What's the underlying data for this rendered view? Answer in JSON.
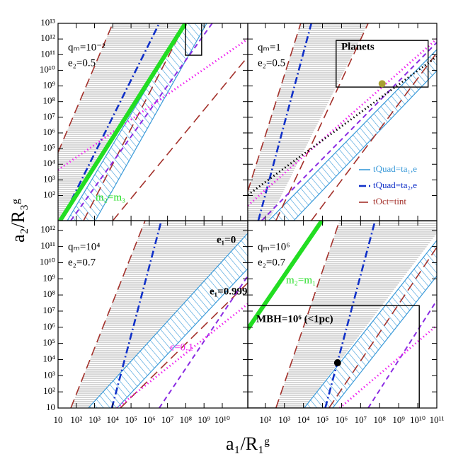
{
  "chart_data": [
    {
      "type": "line",
      "log_scale": true,
      "xlim": [
        10,
        250000000000.0
      ],
      "ylim": [
        2.5,
        10000000000000.0
      ],
      "xtick_labels": false,
      "ytick_labels": true,
      "ylabel": "a₂/R₃ᵍ",
      "xticks": [
        10,
        100,
        1000.0,
        10000.0,
        100000.0,
        1000000.0,
        10000000.0,
        100000000.0,
        1000000000.0,
        10000000000.0,
        100000000000.0
      ],
      "yticks": [
        {
          "value": 100,
          "label": "10²"
        },
        {
          "value": 1000.0,
          "label": "10³"
        },
        {
          "value": 10000.0,
          "label": "10⁴"
        },
        {
          "value": 100000.0,
          "label": "10⁵"
        },
        {
          "value": 1000000.0,
          "label": "10⁶"
        },
        {
          "value": 10000000.0,
          "label": "10⁷"
        },
        {
          "value": 100000000.0,
          "label": "10⁸"
        },
        {
          "value": 1000000000.0,
          "label": "10⁹"
        },
        {
          "value": 10000000000.0,
          "label": "10¹⁰"
        },
        {
          "value": 100000000000.0,
          "label": "10¹¹"
        },
        {
          "value": 1000000000000.0,
          "label": "10¹²"
        },
        {
          "value": 10000000000000.0,
          "label": "10¹³"
        }
      ],
      "labels": [
        "qₘ=10⁻²",
        "e₂=0.5"
      ],
      "bands": [
        {
          "hatch": "horizontal",
          "color": "#9a9a9a",
          "x": [
            10,
            10000.0,
            95000000.0,
            13,
            10
          ],
          "values": [
            58000.0,
            10000000000000.0,
            10000000000000.0,
            2.5,
            2.5
          ]
        },
        {
          "hatch": "diagonal",
          "color": "#3a9ad9",
          "x": [
            32,
            95000000.0,
            1400000000.0,
            1100.0
          ],
          "values": [
            2.5,
            10000000000000.0,
            10000000000000.0,
            2.5
          ]
        }
      ],
      "series": [
        {
          "color": "#a3302a",
          "style": "longdash",
          "x": [
            10,
            10000.0
          ],
          "values": [
            58000.0,
            10000000000000.0
          ]
        },
        {
          "color": "#a3302a",
          "style": "longdash",
          "x": [
            250,
            95000000.0
          ],
          "values": [
            2.5,
            10000000000000.0
          ]
        },
        {
          "color": "#a3302a",
          "style": "longdash",
          "x": [
            10000.0,
            250000000000.0
          ],
          "values": [
            2.5,
            74000000000.0
          ]
        },
        {
          "color": "#1030c8",
          "style": "dashdot",
          "x": [
            25,
            3500000.0
          ],
          "values": [
            8.3,
            10000000000000.0
          ]
        },
        {
          "color": "#8a2be2",
          "style": "dash",
          "x": [
            50,
            2800000000.0
          ],
          "values": [
            2.5,
            10000000000000.0
          ]
        },
        {
          "color": "#ee22ee",
          "style": "dot",
          "x": [
            10,
            250000000000.0
          ],
          "values": [
            4300.0,
            1000000000000.0
          ]
        },
        {
          "color": "#22dd22",
          "style": "thick",
          "x": [
            13,
            95000000.0
          ],
          "values": [
            2.5,
            10000000000000.0
          ]
        }
      ],
      "boxes": [
        {
          "x": [
            95000000.0,
            740000000.0
          ],
          "values": [
            92000000000.0,
            10000000000000.0
          ]
        }
      ],
      "annotations": [
        {
          "text": "m₂=m₃",
          "color": "#22dd22"
        }
      ]
    },
    {
      "type": "line",
      "log_scale": true,
      "xlim": [
        12,
        100000000000.0
      ],
      "ylim": [
        2.5,
        10000000000000.0
      ],
      "xtick_labels": false,
      "ytick_labels": false,
      "xticks": [
        100,
        1000.0,
        10000.0,
        100000.0,
        1000000.0,
        10000000.0,
        100000000.0,
        1000000000.0,
        10000000000.0,
        100000000000.0
      ],
      "yticks": [
        100,
        1000.0,
        10000.0,
        100000.0,
        1000000.0,
        10000000.0,
        100000000.0,
        1000000000.0,
        10000000000.0,
        100000000000.0,
        1000000000000.0,
        10000000000000.0
      ],
      "labels": [
        "qₘ=1",
        "e₂=0.5"
      ],
      "bands": [
        {
          "hatch": "horizontal",
          "color": "#9a9a9a",
          "x": [
            12,
            7200.0,
            25000000.0,
            150,
            12
          ],
          "values": [
            190,
            10000000000000.0,
            10000000000000.0,
            2.5,
            2.5
          ]
        },
        {
          "hatch": "diagonal",
          "color": "#3a9ad9",
          "x": [
            150,
            100000000000.0,
            100000000000.0,
            3100.0
          ],
          "values": [
            2.5,
            210000000000.0,
            9300000000.0,
            2.5
          ]
        }
      ],
      "series": [
        {
          "color": "#a3302a",
          "style": "longdash",
          "x": [
            12,
            7200.0
          ],
          "values": [
            190,
            10000000000000.0
          ]
        },
        {
          "color": "#a3302a",
          "style": "longdash",
          "x": [
            360,
            25000000.0
          ],
          "values": [
            2.5,
            10000000000000.0
          ]
        },
        {
          "color": "#a3302a",
          "style": "longdash",
          "x": [
            26000.0,
            100000000000.0
          ],
          "values": [
            2.5,
            130000000000.0
          ]
        },
        {
          "color": "#1030c8",
          "style": "dashdot",
          "x": [
            43,
            26000.0
          ],
          "values": [
            2.5,
            10000000000000.0
          ]
        },
        {
          "color": "#8a2be2",
          "style": "dash",
          "x": [
            65,
            100000000000.0
          ],
          "values": [
            2.5,
            600000000000.0
          ]
        },
        {
          "color": "#ee22ee",
          "style": "dot",
          "x": [
            12,
            100000000000.0
          ],
          "values": [
            23,
            1000000000000.0
          ]
        },
        {
          "color": "#000000",
          "style": "dot",
          "x": [
            12,
            100000000000.0
          ],
          "values": [
            110,
            74000000000.0
          ]
        }
      ],
      "boxes": [
        {
          "x": [
            520000.0,
            35000000000.0
          ],
          "values": [
            850000000.0,
            810000000000.0
          ]
        }
      ],
      "points": [
        {
          "color": "#a8a032",
          "x": 135000000.0,
          "values": 1400000000.0
        }
      ],
      "annotations": [
        {
          "text": "Planets",
          "color": "#000000"
        }
      ],
      "legend_corner": "lower right",
      "legend": [
        {
          "text": "tQuad=ta₁,e",
          "color": "#3a9ad9",
          "style": "solid"
        },
        {
          "text": "tQuad=ta₂,e",
          "color": "#1030c8",
          "style": "dashdot"
        },
        {
          "text": "tOct=tint",
          "color": "#a3302a",
          "style": "longdash"
        }
      ]
    },
    {
      "type": "line",
      "log_scale": true,
      "xlim": [
        10,
        250000000000.0
      ],
      "ylim": [
        10,
        4000000000000.0
      ],
      "xtick_labels": true,
      "ytick_labels": true,
      "xlabel": "a₁/R₁ᵍ",
      "xticks": [
        10,
        {
          "value": 100,
          "label": "10²"
        },
        {
          "value": 1000.0,
          "label": "10³"
        },
        {
          "value": 10000.0,
          "label": "10⁴"
        },
        {
          "value": 100000.0,
          "label": "10⁵"
        },
        {
          "value": 1000000.0,
          "label": "10⁶"
        },
        {
          "value": 10000000.0,
          "label": "10⁷"
        },
        {
          "value": 100000000.0,
          "label": "10⁸"
        },
        {
          "value": 1000000000.0,
          "label": "10⁹"
        },
        {
          "value": 10000000000.0,
          "label": "10¹⁰"
        }
      ],
      "yticks": [
        10,
        {
          "value": 100,
          "label": "10²"
        },
        {
          "value": 1000.0,
          "label": "10³"
        },
        {
          "value": 10000.0,
          "label": "10⁴"
        },
        {
          "value": 100000.0,
          "label": "10⁵"
        },
        {
          "value": 1000000.0,
          "label": "10⁶"
        },
        {
          "value": 10000000.0,
          "label": "10⁷"
        },
        {
          "value": 100000000.0,
          "label": "10⁸"
        },
        {
          "value": 1000000000.0,
          "label": "10⁹"
        },
        {
          "value": 10000000000.0,
          "label": "10¹⁰"
        },
        {
          "value": 100000000000.0,
          "label": "10¹¹"
        },
        {
          "value": 1000000000000.0,
          "label": "10¹²"
        }
      ],
      "labels": [
        "qₘ=10⁴",
        "e₂=0.7"
      ],
      "bands": [
        {
          "hatch": "horizontal",
          "color": "#9a9a9a",
          "x": [
            50,
            590000.0,
            250000000000.0,
            250000000000.0,
            720
          ],
          "values": [
            10,
            4000000000000.0,
            4000000000000.0,
            660000000000.0,
            10
          ]
        },
        {
          "hatch": "diagonal",
          "color": "#3a9ad9",
          "x": [
            460,
            250000000000.0,
            250000000000.0,
            17000.0
          ],
          "values": [
            10,
            660000000000.0,
            4300000000.0,
            10
          ]
        }
      ],
      "series": [
        {
          "color": "#a3302a",
          "style": "longdash",
          "x": [
            50,
            590000.0
          ],
          "values": [
            10,
            4000000000000.0
          ]
        },
        {
          "color": "#a3302a",
          "style": "longdash",
          "x": [
            26000.0,
            250000000000.0
          ],
          "values": [
            10,
            560000000.0
          ]
        },
        {
          "color": "#1030c8",
          "style": "dashdot",
          "x": [
            8900.0,
            4600000.0
          ],
          "values": [
            10,
            4000000000000.0
          ]
        },
        {
          "color": "#8a2be2",
          "style": "dash",
          "x": [
            3500000.0,
            250000000000.0
          ],
          "values": [
            10,
            1500000000.0
          ]
        },
        {
          "color": "#ee22ee",
          "style": "dot",
          "x": [
            17000.0,
            250000000000.0
          ],
          "values": [
            10,
            28000000.0
          ]
        }
      ],
      "annotations": [
        {
          "text": "e₁=0",
          "color": "#000000"
        },
        {
          "text": "e₁=0.999",
          "color": "#000000"
        },
        {
          "text": "ϵ=0.1",
          "color": "#ee22ee"
        }
      ]
    },
    {
      "type": "line",
      "log_scale": true,
      "xlim": [
        12,
        100000000000.0
      ],
      "ylim": [
        10,
        4000000000000.0
      ],
      "xtick_labels": true,
      "ytick_labels": false,
      "xticks": [
        {
          "value": 100,
          "label": "10²"
        },
        {
          "value": 1000.0,
          "label": "10³"
        },
        {
          "value": 10000.0,
          "label": "10⁴"
        },
        {
          "value": 100000.0,
          "label": "10⁵"
        },
        {
          "value": 1000000.0,
          "label": "10⁶"
        },
        {
          "value": 10000000.0,
          "label": "10⁷"
        },
        {
          "value": 100000000.0,
          "label": "10⁸"
        },
        {
          "value": 1000000000.0,
          "label": "10⁹"
        },
        {
          "value": 10000000000.0,
          "label": "10¹⁰"
        },
        {
          "value": 100000000000.0,
          "label": "10¹¹"
        }
      ],
      "yticks": [
        10,
        100,
        1000.0,
        10000.0,
        100000.0,
        1000000.0,
        10000000.0,
        100000000.0,
        1000000000.0,
        10000000000.0,
        100000000000.0,
        1000000000000.0
      ],
      "labels": [
        "qₘ=10⁶",
        "e₂=0.7"
      ],
      "bands": [
        {
          "hatch": "horizontal",
          "color": "#9a9a9a",
          "x": [
            360,
            790000.0,
            100000000000.0,
            100000000000.0,
            11000.0
          ],
          "values": [
            10,
            4000000000000.0,
            4000000000000.0,
            660000000000.0,
            10
          ]
        },
        {
          "hatch": "diagonal",
          "color": "#3a9ad9",
          "x": [
            11000.0,
            100000000000.0,
            100000000000.0,
            340000.0
          ],
          "values": [
            10,
            240000000000.0,
            1500000000.0,
            10
          ]
        }
      ],
      "series": [
        {
          "color": "#a3302a",
          "style": "longdash",
          "x": [
            360,
            790000.0
          ],
          "values": [
            10,
            4000000000000.0
          ]
        },
        {
          "color": "#a3302a",
          "style": "longdash",
          "x": [
            220000.0,
            100000000000.0
          ],
          "values": [
            10,
            89000000000.0
          ]
        },
        {
          "color": "#1030c8",
          "style": "dashdot",
          "x": [
            140000.0,
            58000000.0
          ],
          "values": [
            10,
            4000000000000.0
          ]
        },
        {
          "color": "#8a2be2",
          "style": "dash",
          "x": [
            25000000.0,
            100000000000.0
          ],
          "values": [
            10,
            46000000.0
          ]
        },
        {
          "color": "#ee22ee",
          "style": "dot",
          "x": [
            800000.0,
            100000000000.0
          ],
          "values": [
            10,
            1300000.0
          ]
        },
        {
          "color": "#22dd22",
          "style": "thick",
          "x": [
            12,
            93000.0
          ],
          "values": [
            790000.0,
            4000000000000.0
          ]
        }
      ],
      "boxes": [
        {
          "x": [
            12,
            12000000000.0
          ],
          "values": [
            10,
            22000000.0
          ]
        }
      ],
      "points": [
        {
          "color": "#000000",
          "x": 620000.0,
          "values": 6300.0
        }
      ],
      "annotations": [
        {
          "text": "m₂=m₁",
          "color": "#22dd22"
        },
        {
          "text": "MBH=10⁶ (<1pc)",
          "color": "#000000"
        }
      ]
    }
  ]
}
